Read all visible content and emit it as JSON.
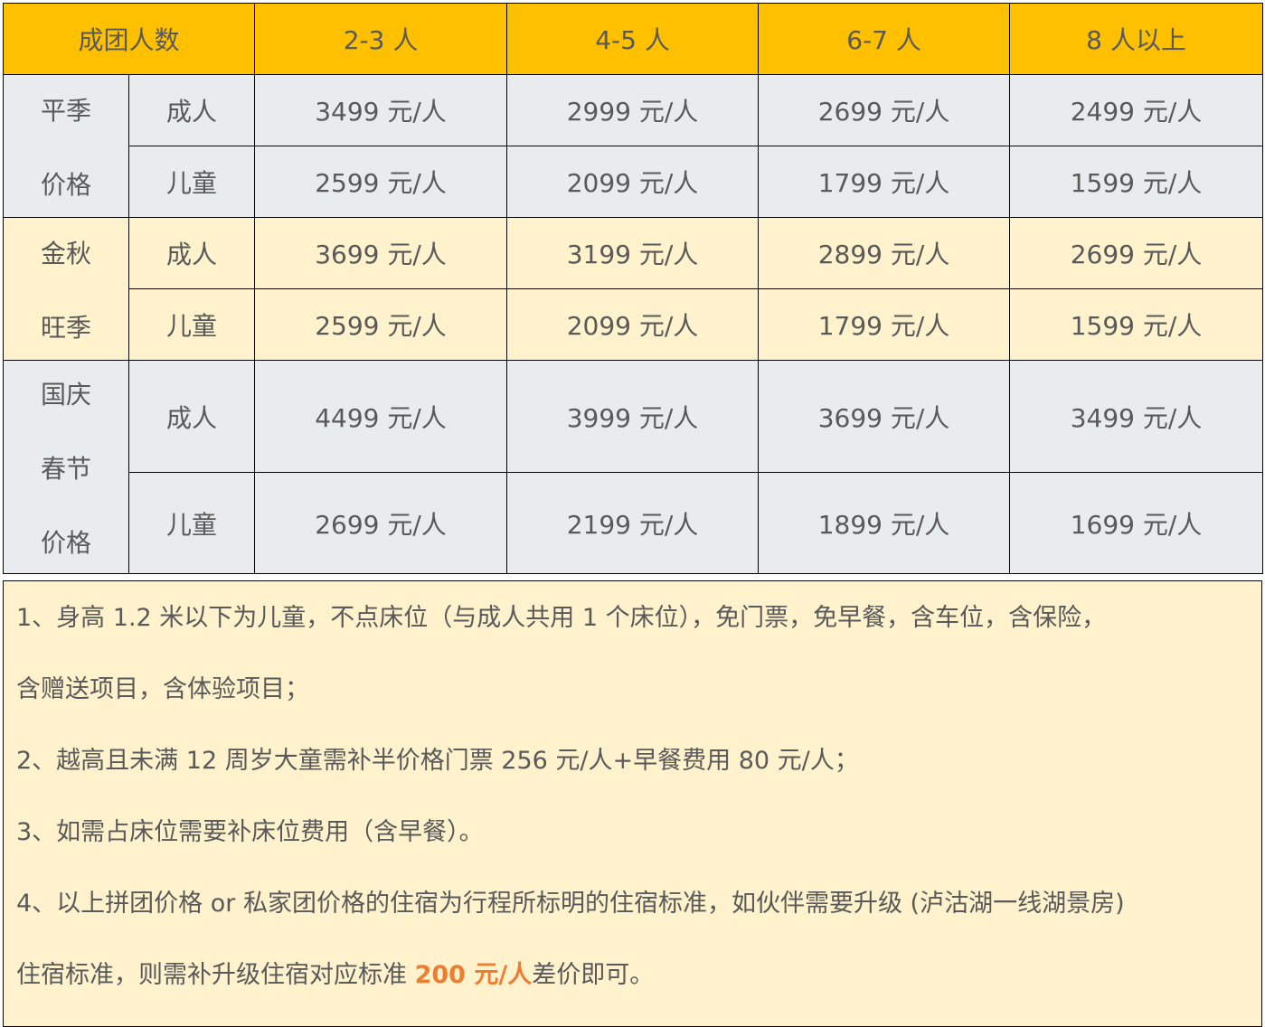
{
  "header": {
    "group_size": "成团人数",
    "columns": [
      "2-3 人",
      "4-5 人",
      "6-7 人",
      "8 人以上"
    ]
  },
  "seasons": [
    {
      "label_lines": [
        "平季",
        "价格"
      ],
      "rows": [
        {
          "type": "成人",
          "prices": [
            "3499 元/人",
            "2999 元/人",
            "2699 元/人",
            "2499 元/人"
          ]
        },
        {
          "type": "儿童",
          "prices": [
            "2599 元/人",
            "2099 元/人",
            "1799 元/人",
            "1599 元/人"
          ]
        }
      ]
    },
    {
      "label_lines": [
        "金秋",
        "旺季"
      ],
      "rows": [
        {
          "type": "成人",
          "prices": [
            "3699 元/人",
            "3199 元/人",
            "2899 元/人",
            "2699 元/人"
          ]
        },
        {
          "type": "儿童",
          "prices": [
            "2599 元/人",
            "2099 元/人",
            "1799 元/人",
            "1599 元/人"
          ]
        }
      ]
    },
    {
      "label_lines": [
        "国庆",
        "春节",
        "价格"
      ],
      "rows": [
        {
          "type": "成人",
          "prices": [
            "4499 元/人",
            "3999 元/人",
            "3699 元/人",
            "3499 元/人"
          ]
        },
        {
          "type": "儿童",
          "prices": [
            "2699 元/人",
            "2199 元/人",
            "1899 元/人",
            "1699 元/人"
          ]
        }
      ]
    }
  ],
  "notes": {
    "line1": "1、身高 1.2 米以下为儿童，不点床位（与成人共用 1 个床位），免门票，免早餐，含车位，含保险，",
    "line2": "含赠送项目，含体验项目；",
    "line3": "2、越高且未满 12 周岁大童需补半价格门票 256 元/人+早餐费用 80 元/人；",
    "line4": "3、如需占床位需要补床位费用（含早餐）。",
    "line5": "4、以上拼团价格 or 私家团价格的住宿为行程所标明的住宿标准，如伙伴需要升级 (泸沽湖一线湖景房)",
    "line6_before": "住宿标准，则需补升级住宿对应标准 ",
    "line6_highlight": "200 元/人",
    "line6_after": "差价即可。"
  },
  "colors": {
    "header": "#FFC000",
    "grey_row": "#E9ECEF",
    "cream_row": "#FFF2CC",
    "text": "#595959",
    "highlight": "#ED7D31"
  }
}
